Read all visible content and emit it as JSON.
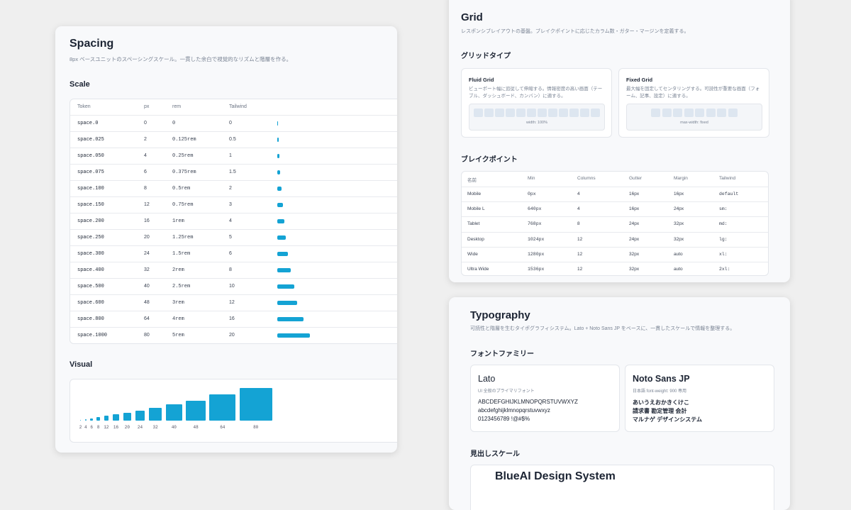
{
  "spacing": {
    "title": "Spacing",
    "description": "8px ベースユニットのスペーシングスケール。一貫した余白で視覚的なリズムと階層を作る。",
    "scale_heading": "Scale",
    "table": {
      "headers": [
        "Token",
        "px",
        "rem",
        "Tailwind"
      ],
      "rows": [
        [
          "space.0",
          0,
          "0",
          "0"
        ],
        [
          "space.025",
          2,
          "0.125rem",
          "0.5"
        ],
        [
          "space.050",
          4,
          "0.25rem",
          "1"
        ],
        [
          "space.075",
          6,
          "0.375rem",
          "1.5"
        ],
        [
          "space.100",
          8,
          "0.5rem",
          "2"
        ],
        [
          "space.150",
          12,
          "0.75rem",
          "3"
        ],
        [
          "space.200",
          16,
          "1rem",
          "4"
        ],
        [
          "space.250",
          20,
          "1.25rem",
          "5"
        ],
        [
          "space.300",
          24,
          "1.5rem",
          "6"
        ],
        [
          "space.400",
          32,
          "2rem",
          "8"
        ],
        [
          "space.500",
          40,
          "2.5rem",
          "10"
        ],
        [
          "space.600",
          48,
          "3rem",
          "12"
        ],
        [
          "space.800",
          64,
          "4rem",
          "16"
        ],
        [
          "space.1000",
          80,
          "5rem",
          "20"
        ]
      ]
    },
    "visual_heading": "Visual",
    "visual_values": [
      2,
      4,
      6,
      8,
      12,
      16,
      20,
      24,
      32,
      40,
      48,
      64,
      80
    ]
  },
  "grid": {
    "title": "Grid",
    "description": "レスポンシブレイアウトの基盤。ブレイクポイントに応じたカラム数・ガター・マージンを定義する。",
    "types_heading": "グリッドタイプ",
    "types": [
      {
        "name": "Fluid Grid",
        "description": "ビューポート幅に追従して伸縮する。情報密度の高い画面（テーブル、ダッシュボード、カンバン）に適する。",
        "caption": "width: 100%"
      },
      {
        "name": "Fixed Grid",
        "description": "最大幅を固定してセンタリングする。可読性が重要な画面（フォーム、記事、設定）に適する。",
        "caption": "max-width: fixed"
      }
    ],
    "breakpoints_heading": "ブレイクポイント",
    "breakpoints": {
      "headers": [
        "名前",
        "Min",
        "Columns",
        "Gutter",
        "Margin",
        "Tailwind"
      ],
      "rows": [
        [
          "Mobile",
          "0px",
          "4",
          "16px",
          "16px",
          "default"
        ],
        [
          "Mobile L",
          "640px",
          "4",
          "16px",
          "24px",
          "sm:"
        ],
        [
          "Tablet",
          "768px",
          "8",
          "24px",
          "32px",
          "md:"
        ],
        [
          "Desktop",
          "1024px",
          "12",
          "24px",
          "32px",
          "lg:"
        ],
        [
          "Wide",
          "1280px",
          "12",
          "32px",
          "auto",
          "xl:"
        ],
        [
          "Ultra Wide",
          "1536px",
          "12",
          "32px",
          "auto",
          "2xl:"
        ]
      ]
    }
  },
  "typography": {
    "title": "Typography",
    "description": "可読性と階層を生むタイポグラフィシステム。Lato + Noto Sans JP をベースに、一貫したスケールで情報を整理する。",
    "families_heading": "フォントファミリー",
    "families": [
      {
        "name": "Lato",
        "note": "UI 全般のプライマリフォント",
        "samples": [
          "ABCDEFGHIJKLMNOPQRSTUVWXYZ",
          "abcdefghijklmnopqrstuvwxyz",
          "0123456789 !@#$%"
        ]
      },
      {
        "name": "Noto Sans JP",
        "note": "日本語 font-weight: 900 専用",
        "samples": [
          "あいうえおかきくけこ",
          "請求書 勘定管理 会計",
          "マルナゲ デザインシステム"
        ]
      }
    ],
    "scale_heading": "見出しスケール",
    "scale_sample": "BlueAI Design System"
  }
}
